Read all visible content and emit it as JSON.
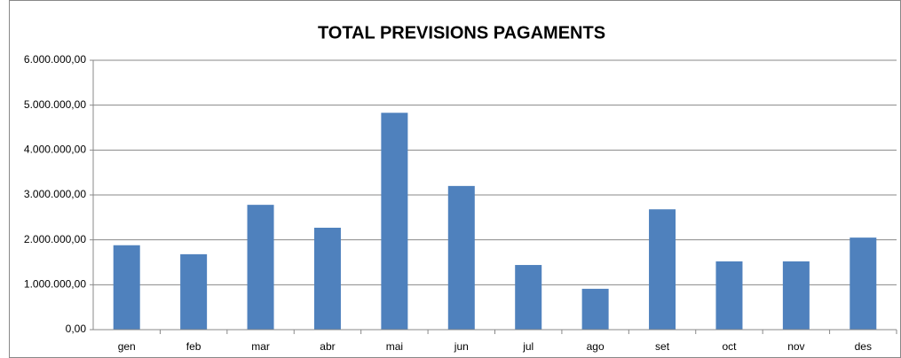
{
  "chart_data": {
    "type": "bar",
    "title": "TOTAL PREVISIONS PAGAMENTS",
    "categories": [
      "gen",
      "feb",
      "mar",
      "abr",
      "mai",
      "jun",
      "jul",
      "ago",
      "set",
      "oct",
      "nov",
      "des"
    ],
    "values": [
      1880000,
      1680000,
      2780000,
      2270000,
      4830000,
      3200000,
      1440000,
      910000,
      2680000,
      1520000,
      1520000,
      2050000
    ],
    "color": "#4f81bd",
    "ylim": [
      0,
      6000000
    ],
    "yticks": [
      {
        "value": 0,
        "label": "0,00"
      },
      {
        "value": 1000000,
        "label": "1.000.000,00"
      },
      {
        "value": 2000000,
        "label": "2.000.000,00"
      },
      {
        "value": 3000000,
        "label": "3.000.000,00"
      },
      {
        "value": 4000000,
        "label": "4.000.000,00"
      },
      {
        "value": 5000000,
        "label": "5.000.000,00"
      },
      {
        "value": 6000000,
        "label": "6.000.000,00"
      }
    ],
    "grid": true
  }
}
